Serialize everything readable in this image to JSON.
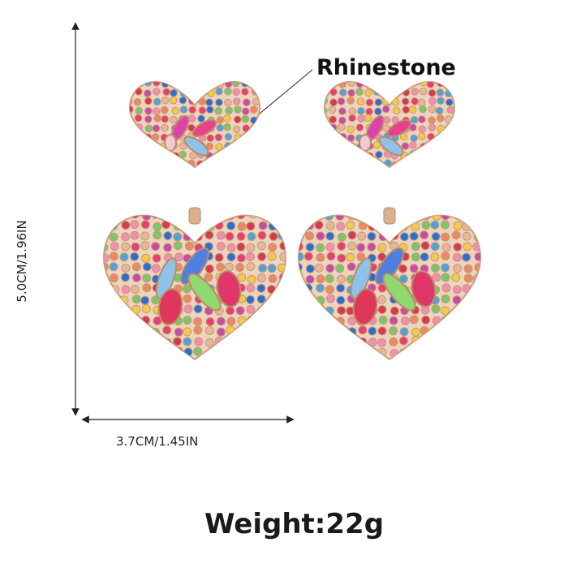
{
  "dimensions": {
    "height_label": "5.0CM/1.96IN",
    "width_label": "3.7CM/1.45IN"
  },
  "callout": {
    "label": "Rhinestone"
  },
  "weight_label": "Weight:22g",
  "colors": {
    "gold": "#d8b08c",
    "gem_palette": [
      "#e83f6f",
      "#f2c94c",
      "#4fa3d9",
      "#7cc56a",
      "#e98a64",
      "#c94aa8",
      "#2a6fd0",
      "#f08fb0",
      "#e6b69a",
      "#d63a50"
    ]
  },
  "icons": {
    "earring": "heart-earring-icon"
  }
}
